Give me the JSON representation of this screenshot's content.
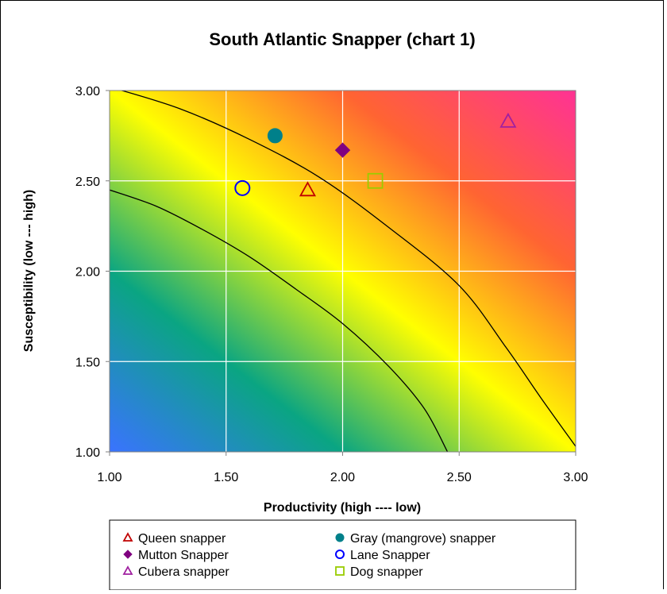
{
  "chart_data": {
    "type": "scatter",
    "title": "South Atlantic Snapper (chart 1)",
    "xlabel": "Productivity (high ---- low)",
    "ylabel": "Susceptibility (low --- high)",
    "xlim": [
      1.0,
      3.0
    ],
    "ylim": [
      1.0,
      3.0
    ],
    "x_ticks": [
      "1.00",
      "1.50",
      "2.00",
      "2.50",
      "3.00"
    ],
    "y_ticks": [
      "1.00",
      "1.50",
      "2.00",
      "2.50",
      "3.00"
    ],
    "grid": true,
    "legend_position": "bottom",
    "background": "diagonal gradient blue (low) - green - yellow - orange - pink (high)",
    "colors": {
      "gradient": [
        "#3a73ff",
        "#0aa582",
        "#ffff00",
        "#ff6432",
        "#ff3294"
      ],
      "queen": "#c00000",
      "gray": "#00808a",
      "mutton": "#800080",
      "lane": "#0000ff",
      "cubera": "#a020a0",
      "dog": "#99cc00"
    },
    "series": [
      {
        "name": "Queen snapper",
        "x": 1.85,
        "y": 2.45,
        "marker": "triangle-open",
        "color_key": "queen"
      },
      {
        "name": "Gray (mangrove) snapper",
        "x": 1.71,
        "y": 2.75,
        "marker": "circle-filled",
        "color_key": "gray"
      },
      {
        "name": "Mutton Snapper",
        "x": 2.0,
        "y": 2.67,
        "marker": "diamond-filled",
        "color_key": "mutton"
      },
      {
        "name": "Lane Snapper",
        "x": 1.57,
        "y": 2.46,
        "marker": "circle-open",
        "color_key": "lane"
      },
      {
        "name": "Cubera snapper",
        "x": 2.71,
        "y": 2.83,
        "marker": "triangle-open",
        "color_key": "cubera"
      },
      {
        "name": "Dog snapper",
        "x": 2.14,
        "y": 2.5,
        "marker": "square-open",
        "color_key": "dog"
      }
    ],
    "curves": [
      {
        "name": "inner",
        "points": [
          [
            1.0,
            2.45
          ],
          [
            1.2,
            2.36
          ],
          [
            1.4,
            2.23
          ],
          [
            1.6,
            2.08
          ],
          [
            1.8,
            1.9
          ],
          [
            2.0,
            1.71
          ],
          [
            2.2,
            1.47
          ],
          [
            2.35,
            1.24
          ],
          [
            2.45,
            1.0
          ]
        ]
      },
      {
        "name": "outer",
        "points": [
          [
            1.0,
            3.02
          ],
          [
            1.3,
            2.9
          ],
          [
            1.6,
            2.73
          ],
          [
            1.9,
            2.52
          ],
          [
            2.2,
            2.24
          ],
          [
            2.5,
            1.92
          ],
          [
            2.7,
            1.58
          ],
          [
            2.85,
            1.3
          ],
          [
            3.0,
            1.03
          ]
        ]
      }
    ]
  }
}
